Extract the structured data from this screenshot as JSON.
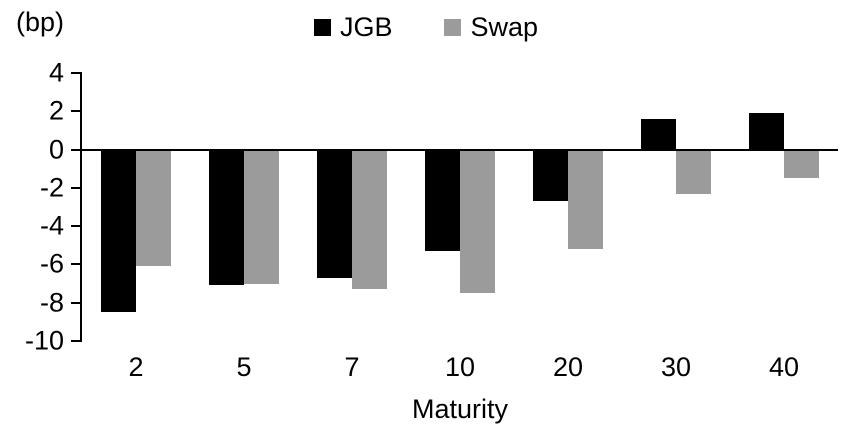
{
  "chart_data": {
    "type": "bar",
    "title": "",
    "unit_label": "(bp)",
    "xlabel": "Maturity",
    "ylabel": "",
    "categories": [
      "2",
      "5",
      "7",
      "10",
      "20",
      "30",
      "40"
    ],
    "series": [
      {
        "name": "JGB",
        "color": "#000000",
        "values": [
          -8.5,
          -7.1,
          -6.7,
          -5.3,
          -2.7,
          1.6,
          1.9
        ]
      },
      {
        "name": "Swap",
        "color": "#9b9b9b",
        "values": [
          -6.1,
          -7.0,
          -7.3,
          -7.5,
          -5.2,
          -2.3,
          -1.5
        ]
      }
    ],
    "ylim": [
      -10,
      4
    ],
    "yticks": [
      4,
      2,
      0,
      -2,
      -4,
      -6,
      -8,
      -10
    ],
    "grid": false,
    "legend_position": "top-center"
  }
}
